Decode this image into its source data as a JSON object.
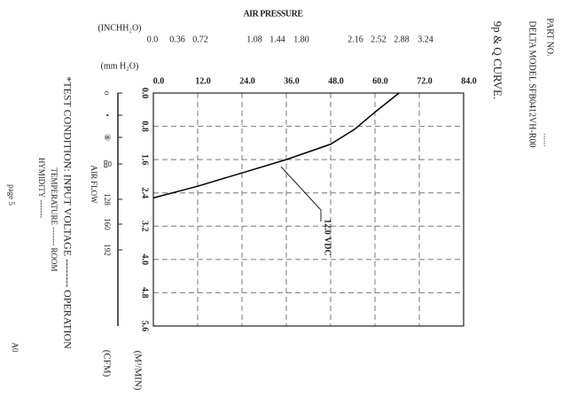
{
  "chart_data": {
    "type": "line",
    "title": "AIR PRESSURE",
    "curve_title": "9p & Q CURVE.",
    "part_no": "PART NO.",
    "model": "DELTA MODEL SFB0412VH-R00",
    "model_dots": "......",
    "inch_axis_label": "(INCHH₂O)",
    "inch_ticks": [
      0.0,
      0.36,
      0.72,
      1.08,
      1.44,
      1.8,
      2.16,
      2.52,
      2.88,
      3.24
    ],
    "x_label": "(mm H₂O)",
    "y_label": "(M³/MIN)",
    "cfm_label": "(CFM)",
    "air_flow_label": "AIR FLOW",
    "cfm_ticks": [
      "o",
      "•",
      "⑧",
      "品",
      "128",
      "160",
      "192"
    ],
    "test_condition": "*TEST CONDITION: INPUT VOLTAGE -------- OPERATION",
    "temperature": "TEMPERATURE ------- ROOM",
    "humidity": "HYMIDITY -------",
    "page": "page 5",
    "revision": "A0",
    "annotation": "12.0 VDC",
    "x": [
      0,
      12,
      24,
      36,
      48,
      54.5,
      60,
      66.5
    ],
    "series": [
      {
        "name": "12.0 VDC",
        "color": "#000000",
        "values": [
          2.52,
          2.24,
          1.92,
          1.6,
          1.23,
          0.87,
          0.46,
          0
        ]
      }
    ],
    "xlim": [
      0,
      84
    ],
    "xticks": [
      {
        "value": 0,
        "label": "0.0"
      },
      {
        "value": 12,
        "label": "12.0"
      },
      {
        "value": 24,
        "label": "24.0"
      },
      {
        "value": 36,
        "label": "36.0"
      },
      {
        "value": 48,
        "label": "48.0"
      },
      {
        "value": 60,
        "label": "60.0"
      },
      {
        "value": 72,
        "label": "72.0"
      },
      {
        "value": 84,
        "label": "84.0"
      }
    ],
    "ylim": [
      0,
      5.6
    ],
    "y_inverted": true,
    "yticks": [
      {
        "value": 0,
        "label": "0.0"
      },
      0.8,
      1.6,
      2.4,
      3.2,
      {
        "value": 4,
        "label": "4.0"
      },
      4.8,
      5.6
    ],
    "grid": true
  }
}
